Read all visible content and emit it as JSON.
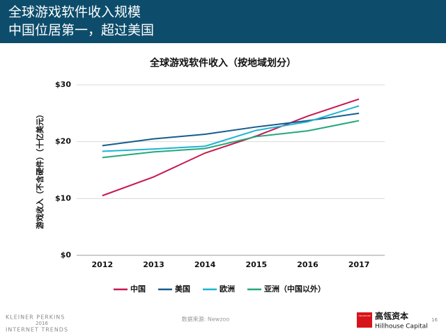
{
  "header": {
    "title_lines": [
      "全球游戏软件收入规模",
      "中国位居第一，超过美国"
    ]
  },
  "chart_data": {
    "type": "line",
    "title": "全球游戏软件收入（按地域划分）",
    "y_label": "游戏收入（不含硬件）（十亿美元）",
    "categories": [
      "2012",
      "2013",
      "2014",
      "2015",
      "2016",
      "2017"
    ],
    "series": [
      {
        "name": "中国",
        "color": "#c8174f",
        "values": [
          10.5,
          13.8,
          18.0,
          21.0,
          24.5,
          27.5
        ]
      },
      {
        "name": "美国",
        "color": "#145c8c",
        "values": [
          19.3,
          20.5,
          21.3,
          22.6,
          23.7,
          25.0
        ]
      },
      {
        "name": "欧洲",
        "color": "#1cb3d2",
        "values": [
          18.3,
          18.7,
          19.2,
          22.0,
          23.5,
          26.3
        ]
      },
      {
        "name": "亚洲（中国以外）",
        "color": "#23a878",
        "values": [
          17.2,
          18.2,
          18.8,
          20.9,
          21.9,
          23.7
        ]
      }
    ],
    "ylim": [
      0,
      30
    ],
    "yticks": [
      {
        "value": 0,
        "label": "$0"
      },
      {
        "value": 10,
        "label": "$10"
      },
      {
        "value": 20,
        "label": "$20"
      },
      {
        "value": 30,
        "label": "$30"
      }
    ],
    "grid": true,
    "legend": "bottom"
  },
  "footer": {
    "brand_lines": [
      "KLEINER PERKINS",
      "2016",
      "INTERNET TRENDS"
    ],
    "source": "数据来源: Newzoo",
    "logo_mark": "HILLHOUSE",
    "logo_cn": "高瓴资本",
    "logo_en": "Hillhouse Capital",
    "page": "16"
  }
}
